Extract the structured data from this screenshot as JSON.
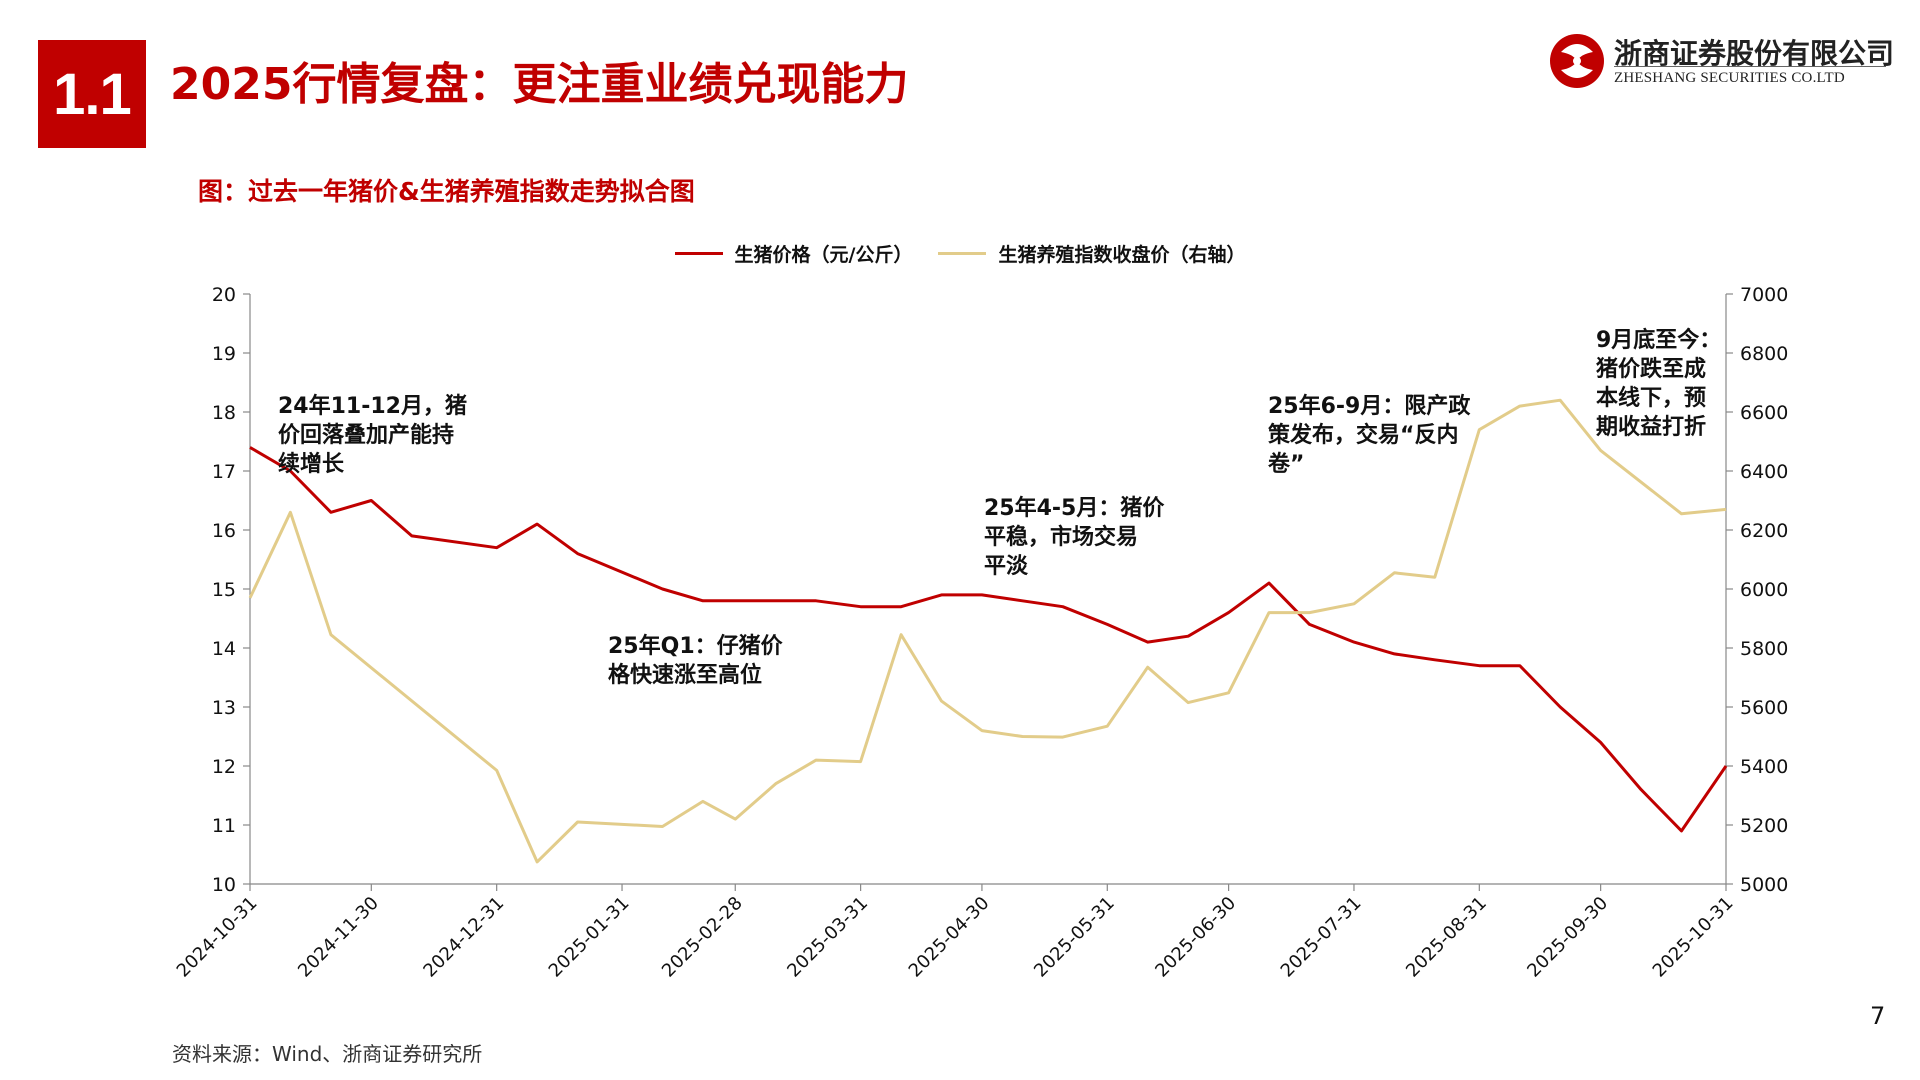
{
  "header": {
    "section_number": "1.1",
    "title": "2025行情复盘：更注重业绩兑现能力",
    "logo_cn": "浙商证券股份有限公司",
    "logo_en": "ZHESHANG SECURITIES CO.LTD"
  },
  "colors": {
    "accent": "#c00000",
    "series_price": "#c00000",
    "series_index": "#e2cc8a"
  },
  "annotations": [
    {
      "lines": [
        "24年11-12月，猪",
        "价回落叠加产能持",
        "续增长"
      ]
    },
    {
      "lines": [
        "25年Q1：仔猪价",
        "格快速涨至高位"
      ]
    },
    {
      "lines": [
        "25年4-5月：猪价",
        "平稳，市场交易",
        "平淡"
      ]
    },
    {
      "lines": [
        "25年6-9月：限产政",
        "策发布，交易“反内",
        "卷”"
      ]
    },
    {
      "lines": [
        "9月底至今：",
        "猪价跌至成",
        "本线下，预",
        "期收益打折"
      ]
    }
  ],
  "footer": {
    "source": "资料来源：Wind、浙商证券研究所",
    "page_number": "7"
  },
  "chart_data": {
    "type": "line",
    "title": "图：过去一年猪价&生猪养殖指数走势拟合图",
    "legend_position": "top-center",
    "grid": false,
    "x_ticks": [
      "2024-10-31",
      "2024-11-30",
      "2024-12-31",
      "2025-01-31",
      "2025-02-28",
      "2025-03-31",
      "2025-04-30",
      "2025-05-31",
      "2025-06-30",
      "2025-07-31",
      "2025-08-31",
      "2025-09-30",
      "2025-10-31"
    ],
    "y_left": {
      "lim": [
        10,
        20
      ],
      "ticks": [
        "10",
        "11",
        "12",
        "13",
        "14",
        "15",
        "16",
        "17",
        "18",
        "19",
        "20"
      ]
    },
    "y_right": {
      "lim": [
        5000,
        7000
      ],
      "ticks": [
        "5000",
        "5200",
        "5400",
        "5600",
        "5800",
        "6000",
        "6200",
        "6400",
        "6600",
        "6800",
        "7000"
      ]
    },
    "series": [
      {
        "name": "生猪价格（元/公斤）",
        "axis": "left",
        "x": [
          "2024-10-31",
          "2024-11-10",
          "2024-11-20",
          "2024-11-30",
          "2024-12-10",
          "2024-12-31",
          "2025-01-10",
          "2025-01-20",
          "2025-02-10",
          "2025-02-20",
          "2025-02-28",
          "2025-03-10",
          "2025-03-20",
          "2025-03-31",
          "2025-04-10",
          "2025-04-20",
          "2025-04-30",
          "2025-05-10",
          "2025-05-20",
          "2025-05-31",
          "2025-06-10",
          "2025-06-20",
          "2025-06-30",
          "2025-07-10",
          "2025-07-20",
          "2025-07-31",
          "2025-08-10",
          "2025-08-20",
          "2025-08-31",
          "2025-09-10",
          "2025-09-20",
          "2025-09-30",
          "2025-10-10",
          "2025-10-20",
          "2025-10-31"
        ],
        "values": [
          17.4,
          17.0,
          16.3,
          16.5,
          15.9,
          15.7,
          16.1,
          15.6,
          15.0,
          14.8,
          14.8,
          14.8,
          14.8,
          14.7,
          14.7,
          14.9,
          14.9,
          14.8,
          14.7,
          14.4,
          14.1,
          14.2,
          14.6,
          15.1,
          14.4,
          14.1,
          13.9,
          13.8,
          13.7,
          13.7,
          13.0,
          12.4,
          11.6,
          10.9,
          12.0
        ]
      },
      {
        "name": "生猪养殖指数收盘价（右轴）",
        "axis": "right",
        "x": [
          "2024-10-31",
          "2024-11-10",
          "2024-11-20",
          "2024-12-31",
          "2025-01-10",
          "2025-01-20",
          "2025-02-10",
          "2025-02-20",
          "2025-02-28",
          "2025-03-10",
          "2025-03-20",
          "2025-03-31",
          "2025-04-10",
          "2025-04-20",
          "2025-04-30",
          "2025-05-10",
          "2025-05-20",
          "2025-05-31",
          "2025-06-10",
          "2025-06-20",
          "2025-06-30",
          "2025-07-10",
          "2025-07-20",
          "2025-07-31",
          "2025-08-10",
          "2025-08-20",
          "2025-08-31",
          "2025-09-10",
          "2025-09-20",
          "2025-09-30",
          "2025-10-20",
          "2025-10-31"
        ],
        "values": [
          5970,
          6260,
          5845,
          5385,
          5075,
          5210,
          5195,
          5280,
          5220,
          5340,
          5420,
          5415,
          5845,
          5620,
          5520,
          5500,
          5498,
          5535,
          5735,
          5615,
          5648,
          5920,
          5920,
          5950,
          6055,
          6040,
          6540,
          6620,
          6640,
          6470,
          6255,
          6270
        ]
      }
    ]
  }
}
